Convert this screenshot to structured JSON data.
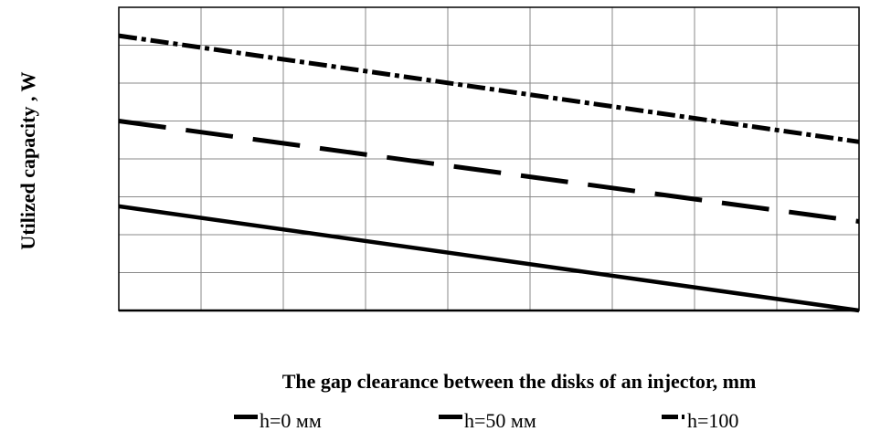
{
  "chart_data": {
    "type": "line",
    "title": "",
    "xlabel": "The gap clearance between the disks of an injector, mm",
    "ylabel": "Utilized capacity ,  W",
    "xlim": [
      0,
      9
    ],
    "ylim": [
      0,
      8
    ],
    "x_gridlines": 9,
    "y_gridlines": 8,
    "grid": true,
    "x_tick_labels": [],
    "y_tick_labels": [],
    "legend_position": "bottom",
    "series": [
      {
        "name": "h=0 мм",
        "style": "solid",
        "x": [
          0,
          9
        ],
        "y": [
          2.75,
          0.0
        ]
      },
      {
        "name": "h=50 мм",
        "style": "dashed",
        "x": [
          0,
          9
        ],
        "y": [
          5.0,
          2.35
        ]
      },
      {
        "name": "h=100",
        "style": "dashdot",
        "x": [
          0,
          9
        ],
        "y": [
          7.25,
          4.45
        ]
      }
    ]
  }
}
